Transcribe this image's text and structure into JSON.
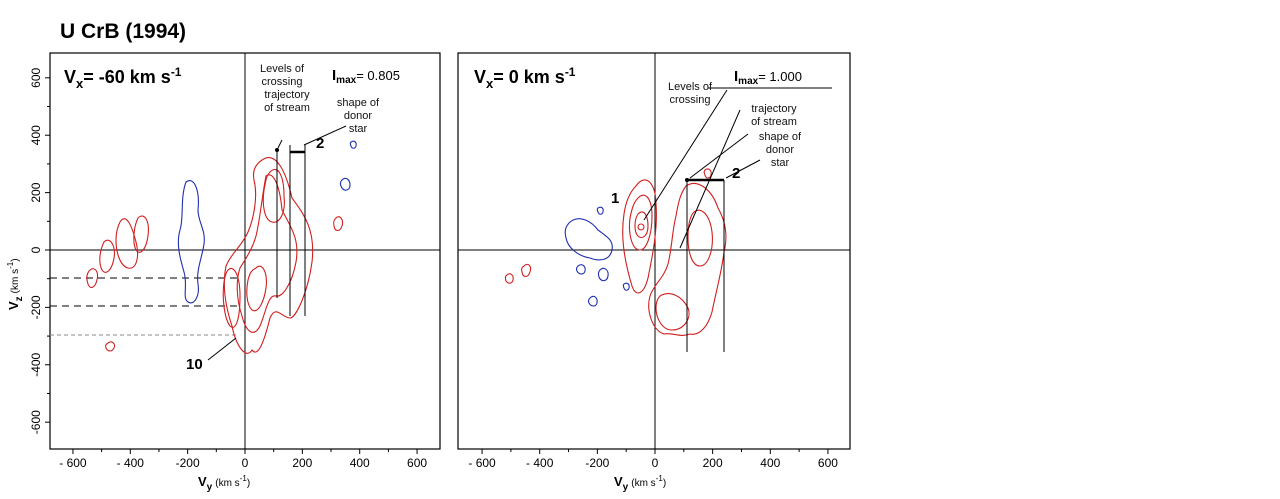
{
  "figure": {
    "title": "U CrB (1994)",
    "x_unit": "(km s",
    "x_unit_exp": "-1",
    "y_unit": "(km s",
    "y_unit_exp": "-1"
  },
  "colors": {
    "emission_contours": "#d01f1f",
    "absorption_contours": "#1f2fb0"
  },
  "chart_data": [
    {
      "type": "contour",
      "panel": "left",
      "vx_label_base": "V",
      "vx_label_sub": "x",
      "vx_label_value": "= -60  km s",
      "vx_label_exp": "-1",
      "imax_label_base": "I",
      "imax_label_sub": "max",
      "imax_value": "= 0.805",
      "xlabel_base": "V",
      "xlabel_sub": "y",
      "ylabel_base": "V",
      "ylabel_sub": "z",
      "xlim": [
        -680,
        680
      ],
      "ylim": [
        -690,
        690
      ],
      "xticks": [
        -600,
        -400,
        -200,
        0,
        200,
        400,
        600
      ],
      "yticks": [
        -600,
        -400,
        -200,
        0,
        200,
        400,
        600
      ],
      "xtick_labels": [
        "- 600",
        "- 400",
        "-200",
        "0",
        "200",
        "400",
        "600"
      ],
      "ytick_labels": [
        "-600",
        "-400",
        "-200",
        "0",
        "200",
        "400",
        "600"
      ],
      "annotations": {
        "levels": "Levels of crossing",
        "trajectory": "trajectory of stream",
        "donor": "shape of donor star",
        "label_2": "2",
        "label_10": "10"
      },
      "dashed_levels_vz": [
        -100,
        -200,
        -300
      ]
    },
    {
      "type": "contour",
      "panel": "right",
      "vx_label_base": "V",
      "vx_label_sub": "x",
      "vx_label_value": "= 0  km s",
      "vx_label_exp": "-1",
      "imax_label_base": "I",
      "imax_label_sub": "max",
      "imax_value": "= 1.000",
      "xlabel_base": "V",
      "xlabel_sub": "y",
      "xlim": [
        -680,
        680
      ],
      "ylim": [
        -690,
        690
      ],
      "xticks": [
        -600,
        -400,
        -200,
        0,
        200,
        400,
        600
      ],
      "xtick_labels": [
        "- 600",
        "- 400",
        "-200",
        "0",
        "200",
        "400",
        "600"
      ],
      "annotations": {
        "levels": "Levels of crossing",
        "trajectory": "trajectory of stream",
        "donor": "shape of donor star",
        "label_1": "1",
        "label_2": "2"
      }
    }
  ]
}
